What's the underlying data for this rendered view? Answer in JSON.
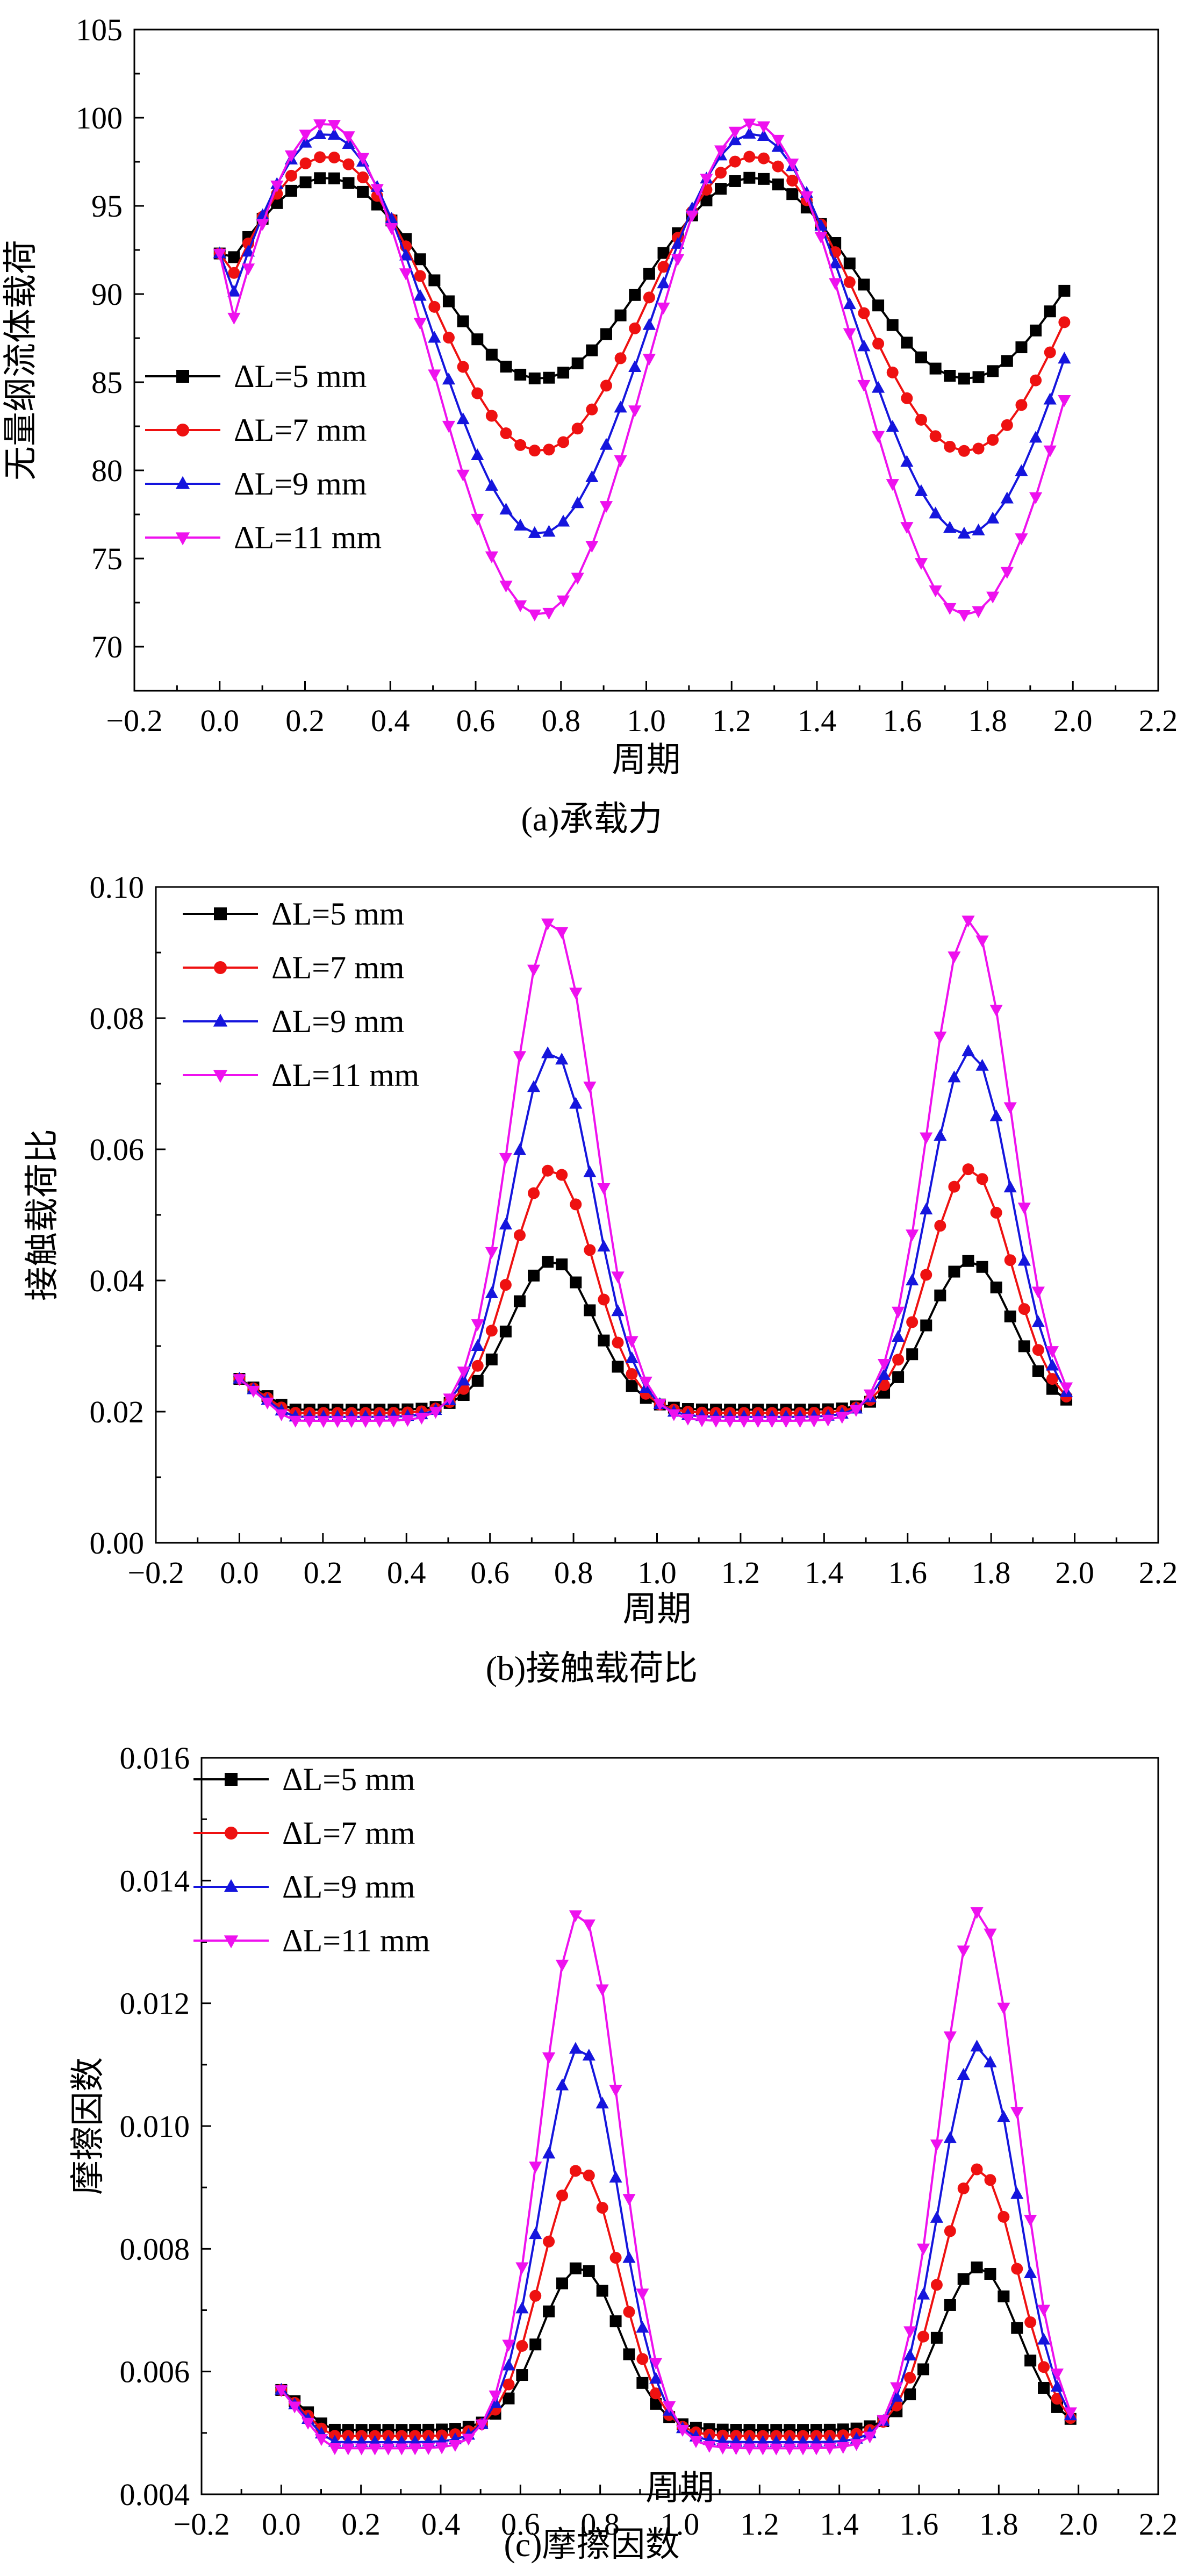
{
  "chart_data": [
    {
      "type": "line",
      "panel": "a",
      "caption": "(a)承载力",
      "xlabel": "周期",
      "ylabel": "无量纲流体载荷",
      "xlim": [
        -0.2,
        2.2
      ],
      "ylim": [
        67.5,
        105
      ],
      "xticks": [
        "−0.2",
        "0.0",
        "0.2",
        "0.4",
        "0.6",
        "0.8",
        "1.0",
        "1.2",
        "1.4",
        "1.6",
        "1.8",
        "2.0",
        "2.2"
      ],
      "yticks": [
        "70",
        "75",
        "80",
        "85",
        "90",
        "95",
        "100",
        "105"
      ],
      "legend": {
        "position": "middle-left"
      },
      "series": [
        {
          "name": "ΔL=5 mm",
          "color": "#000000",
          "marker": "square",
          "params": {
            "mean": 90.9,
            "amp": 5.7,
            "start": 92.3
          }
        },
        {
          "name": "ΔL=7 mm",
          "color": "#ee1111",
          "marker": "circle",
          "params": {
            "mean": 89.45,
            "amp": 8.35,
            "start": 92.3
          }
        },
        {
          "name": "ΔL=9 mm",
          "color": "#1515dd",
          "marker": "triangle-up",
          "params": {
            "mean": 87.75,
            "amp": 11.35,
            "start": 92.3
          }
        },
        {
          "name": "ΔL=11 mm",
          "color": "#ee11ee",
          "marker": "triangle-down",
          "params": {
            "mean": 85.75,
            "amp": 13.95,
            "start": 92.3
          }
        }
      ]
    },
    {
      "type": "line",
      "panel": "b",
      "caption": "(b)接触载荷比",
      "xlabel": "周期",
      "ylabel": "接触载荷比",
      "xlim": [
        -0.2,
        2.2
      ],
      "ylim": [
        0,
        0.1
      ],
      "xticks": [
        "−0.2",
        "0.0",
        "0.2",
        "0.4",
        "0.6",
        "0.8",
        "1.0",
        "1.2",
        "1.4",
        "1.6",
        "1.8",
        "2.0",
        "2.2"
      ],
      "yticks": [
        "0.00",
        "0.02",
        "0.04",
        "0.06",
        "0.08",
        "0.10"
      ],
      "legend": {
        "position": "top-left"
      },
      "series": [
        {
          "name": "ΔL=5 mm",
          "color": "#000000",
          "marker": "square",
          "params": {
            "base": 0.0203,
            "peak": 0.043,
            "start": 0.025
          }
        },
        {
          "name": "ΔL=7 mm",
          "color": "#ee1111",
          "marker": "circle",
          "params": {
            "base": 0.0198,
            "peak": 0.057,
            "start": 0.025
          }
        },
        {
          "name": "ΔL=9 mm",
          "color": "#1515dd",
          "marker": "triangle-up",
          "params": {
            "base": 0.0192,
            "peak": 0.075,
            "start": 0.025
          }
        },
        {
          "name": "ΔL=11 mm",
          "color": "#ee11ee",
          "marker": "triangle-down",
          "params": {
            "base": 0.0186,
            "peak": 0.095,
            "start": 0.025
          }
        }
      ]
    },
    {
      "type": "line",
      "panel": "c",
      "caption": "(c)摩擦因数",
      "xlabel": "周期",
      "ylabel": "摩擦因数",
      "xlim": [
        -0.2,
        2.2
      ],
      "ylim": [
        0.004,
        0.016
      ],
      "xticks": [
        "−0.2",
        "0.0",
        "0.2",
        "0.4",
        "0.6",
        "0.8",
        "1.0",
        "1.2",
        "1.4",
        "1.6",
        "1.8",
        "2.0",
        "2.2"
      ],
      "yticks": [
        "0.004",
        "0.006",
        "0.008",
        "0.010",
        "0.012",
        "0.014",
        "0.016"
      ],
      "legend": {
        "position": "top-left"
      },
      "series": [
        {
          "name": "ΔL=5 mm",
          "color": "#000000",
          "marker": "square",
          "params": {
            "base": 0.00505,
            "peak": 0.0077,
            "start": 0.0057
          }
        },
        {
          "name": "ΔL=7 mm",
          "color": "#ee1111",
          "marker": "circle",
          "params": {
            "base": 0.00495,
            "peak": 0.0093,
            "start": 0.0057
          }
        },
        {
          "name": "ΔL=9 mm",
          "color": "#1515dd",
          "marker": "triangle-up",
          "params": {
            "base": 0.00485,
            "peak": 0.0113,
            "start": 0.0057
          }
        },
        {
          "name": "ΔL=11 mm",
          "color": "#ee11ee",
          "marker": "triangle-down",
          "params": {
            "base": 0.00475,
            "peak": 0.0135,
            "start": 0.0057
          }
        }
      ]
    }
  ]
}
